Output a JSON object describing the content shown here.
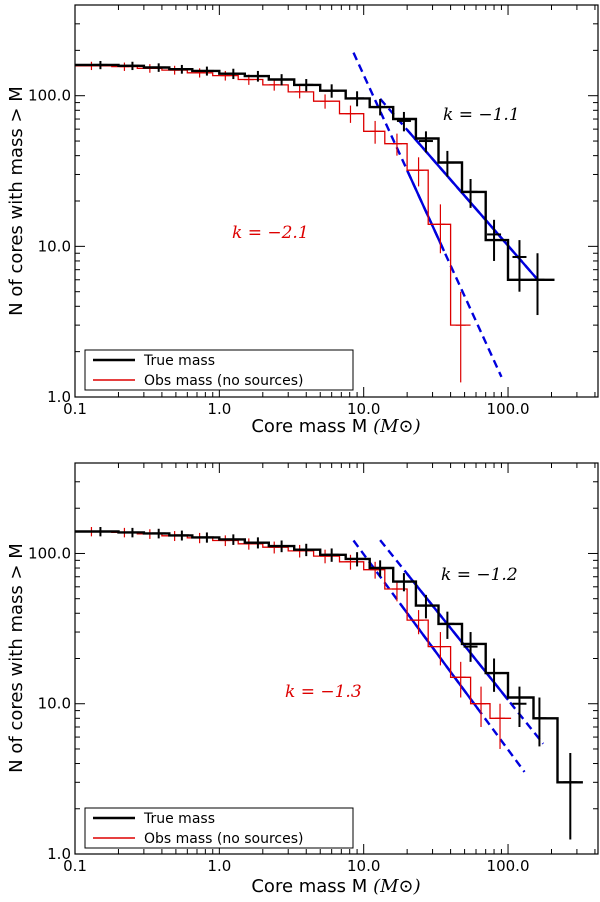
{
  "chart_data": [
    {
      "type": "line",
      "panel": "top",
      "xscale": "log",
      "yscale": "log",
      "xlim": [
        0.1,
        420
      ],
      "ylim": [
        1.0,
        400
      ],
      "xticks": [
        0.1,
        1.0,
        10.0,
        100.0
      ],
      "xtick_labels": [
        "0.1",
        "1.0",
        "10.0",
        "100.0"
      ],
      "yticks": [
        1.0,
        10.0,
        100.0
      ],
      "ytick_labels": [
        "1.0",
        "10.0",
        "100.0"
      ],
      "xlabel": "Core mass M",
      "xlabel_unit": "(M⊙)",
      "ylabel": "N of cores with mass > M",
      "legend": {
        "placement": "lower-left",
        "entries": [
          "True mass",
          "Obs mass (no sources)"
        ]
      },
      "annotations": [
        {
          "text": "k = −1.1",
          "color": "#000000"
        },
        {
          "text": "k = −2.1",
          "color": "#dd0000"
        }
      ],
      "series": [
        {
          "name": "True mass",
          "color": "#000000",
          "step_edges": [
            0.1,
            0.2,
            0.3,
            0.45,
            0.65,
            1.0,
            1.5,
            2.2,
            3.3,
            5.0,
            7.5,
            11,
            16,
            23,
            33,
            48,
            70,
            100,
            150,
            210
          ],
          "step_values": [
            160,
            158,
            154,
            150,
            146,
            140,
            135,
            128,
            118,
            108,
            96,
            84,
            70,
            52,
            36,
            23,
            11,
            6,
            6
          ],
          "error_x": [
            0.15,
            0.25,
            0.38,
            0.55,
            0.82,
            1.25,
            1.85,
            2.7,
            4.0,
            6.0,
            9.0,
            13.0,
            19.0,
            27,
            38,
            55,
            80,
            120,
            160
          ],
          "error_y": [
            160,
            158,
            154,
            150,
            146,
            140,
            135,
            128,
            118,
            108,
            96,
            84,
            68,
            50,
            36,
            23,
            12,
            8.5,
            6
          ],
          "error_lo": [
            150,
            148,
            144,
            140,
            136,
            129,
            124,
            117,
            107,
            97,
            85,
            74,
            58,
            42,
            29,
            18,
            8,
            5,
            3.5
          ],
          "error_hi": [
            170,
            168,
            164,
            160,
            156,
            151,
            146,
            139,
            129,
            119,
            107,
            95,
            78,
            58,
            43,
            28,
            15,
            11,
            9
          ]
        },
        {
          "name": "Obs mass (no sources)",
          "color": "#dd0000",
          "step_edges": [
            0.1,
            0.18,
            0.27,
            0.4,
            0.6,
            0.9,
            1.35,
            2.0,
            3.0,
            4.5,
            6.8,
            10,
            14,
            20,
            28,
            40,
            55
          ],
          "step_values": [
            158,
            156,
            152,
            148,
            142,
            136,
            128,
            118,
            106,
            92,
            76,
            58,
            48,
            32,
            14,
            3,
            3
          ],
          "error_x": [
            0.13,
            0.22,
            0.33,
            0.49,
            0.73,
            1.1,
            1.6,
            2.4,
            3.6,
            5.4,
            8.1,
            12,
            17,
            24,
            34,
            47
          ],
          "error_y": [
            158,
            156,
            152,
            148,
            142,
            136,
            128,
            118,
            106,
            92,
            76,
            58,
            48,
            32,
            14,
            3
          ],
          "error_lo": [
            148,
            146,
            142,
            138,
            132,
            126,
            118,
            108,
            96,
            82,
            66,
            48,
            40,
            25,
            9,
            1.25
          ],
          "error_hi": [
            168,
            166,
            162,
            158,
            152,
            146,
            138,
            128,
            116,
            102,
            86,
            68,
            56,
            39,
            19,
            5
          ]
        }
      ],
      "fits": [
        {
          "name": "fit true mass",
          "k": -1.1,
          "color": "#0000dd",
          "solid_range": [
            20,
            160
          ],
          "dashed_range": [
            13,
            160
          ],
          "anchor": [
            30,
            38
          ]
        },
        {
          "name": "fit obs mass",
          "k": -2.1,
          "color": "#0000dd",
          "solid_range": [
            20,
            36
          ],
          "dashed_range": [
            8.5,
            90
          ],
          "anchor": [
            20,
            32
          ]
        }
      ]
    },
    {
      "type": "line",
      "panel": "bottom",
      "xscale": "log",
      "yscale": "log",
      "xlim": [
        0.1,
        420
      ],
      "ylim": [
        1.0,
        400
      ],
      "xticks": [
        0.1,
        1.0,
        10.0,
        100.0
      ],
      "xtick_labels": [
        "0.1",
        "1.0",
        "10.0",
        "100.0"
      ],
      "yticks": [
        1.0,
        10.0,
        100.0
      ],
      "ytick_labels": [
        "1.0",
        "10.0",
        "100.0"
      ],
      "xlabel": "Core mass M",
      "xlabel_unit": "(M⊙)",
      "ylabel": "N of cores with mass > M",
      "legend": {
        "placement": "lower-left",
        "entries": [
          "True mass",
          "Obs mass (no sources)"
        ]
      },
      "annotations": [
        {
          "text": "k = −1.2",
          "color": "#000000"
        },
        {
          "text": "k = −1.3",
          "color": "#dd0000"
        }
      ],
      "series": [
        {
          "name": "True mass",
          "color": "#000000",
          "step_edges": [
            0.1,
            0.2,
            0.3,
            0.45,
            0.65,
            1.0,
            1.5,
            2.2,
            3.3,
            5.0,
            7.5,
            11,
            16,
            23,
            33,
            48,
            70,
            100,
            150,
            220,
            330
          ],
          "step_values": [
            140,
            138,
            136,
            132,
            128,
            124,
            118,
            112,
            106,
            98,
            92,
            80,
            65,
            45,
            34,
            25,
            16,
            11,
            8,
            3
          ],
          "error_x": [
            0.15,
            0.25,
            0.38,
            0.55,
            0.82,
            1.25,
            1.85,
            2.7,
            4.0,
            6.0,
            9.0,
            13.0,
            19.0,
            27,
            38,
            55,
            80,
            120,
            165,
            270
          ],
          "error_y": [
            140,
            138,
            136,
            132,
            128,
            124,
            118,
            112,
            106,
            98,
            92,
            80,
            65,
            45,
            34,
            24,
            16,
            10,
            8,
            3
          ],
          "error_lo": [
            130,
            128,
            126,
            122,
            118,
            114,
            108,
            102,
            96,
            88,
            82,
            70,
            56,
            37,
            27,
            19,
            12,
            7,
            5.2,
            1.25
          ],
          "error_hi": [
            150,
            148,
            146,
            142,
            138,
            134,
            128,
            122,
            116,
            108,
            102,
            90,
            74,
            53,
            41,
            30,
            20,
            13,
            11,
            4.7
          ]
        },
        {
          "name": "Obs mass (no sources)",
          "color": "#dd0000",
          "step_edges": [
            0.1,
            0.18,
            0.27,
            0.4,
            0.6,
            0.9,
            1.35,
            2.0,
            3.0,
            4.5,
            6.8,
            10,
            14,
            20,
            28,
            40,
            55,
            75,
            105
          ],
          "step_values": [
            140,
            138,
            135,
            131,
            127,
            122,
            116,
            110,
            104,
            96,
            88,
            78,
            58,
            36,
            24,
            15,
            10,
            8
          ],
          "error_x": [
            0.13,
            0.22,
            0.33,
            0.49,
            0.73,
            1.1,
            1.6,
            2.4,
            3.6,
            5.4,
            8.1,
            12,
            17,
            24,
            34,
            47,
            65,
            88
          ],
          "error_y": [
            140,
            138,
            135,
            131,
            127,
            122,
            116,
            110,
            104,
            96,
            88,
            78,
            58,
            36,
            24,
            15,
            10,
            8
          ],
          "error_lo": [
            130,
            128,
            125,
            121,
            117,
            112,
            106,
            100,
            94,
            86,
            78,
            68,
            48,
            29,
            18,
            11,
            7,
            5
          ],
          "error_hi": [
            150,
            148,
            145,
            141,
            137,
            132,
            126,
            120,
            114,
            106,
            98,
            88,
            66,
            42,
            30,
            19,
            13,
            10
          ]
        }
      ],
      "fits": [
        {
          "name": "fit true mass",
          "k": -1.2,
          "color": "#0000dd",
          "solid_range": [
            20,
            100
          ],
          "dashed_range": [
            13,
            175
          ],
          "anchor": [
            30,
            45
          ]
        },
        {
          "name": "fit obs mass",
          "k": -1.3,
          "color": "#0000dd",
          "solid_range": [
            18,
            62
          ],
          "dashed_range": [
            8.5,
            130
          ],
          "anchor": [
            25,
            30
          ]
        }
      ]
    }
  ]
}
